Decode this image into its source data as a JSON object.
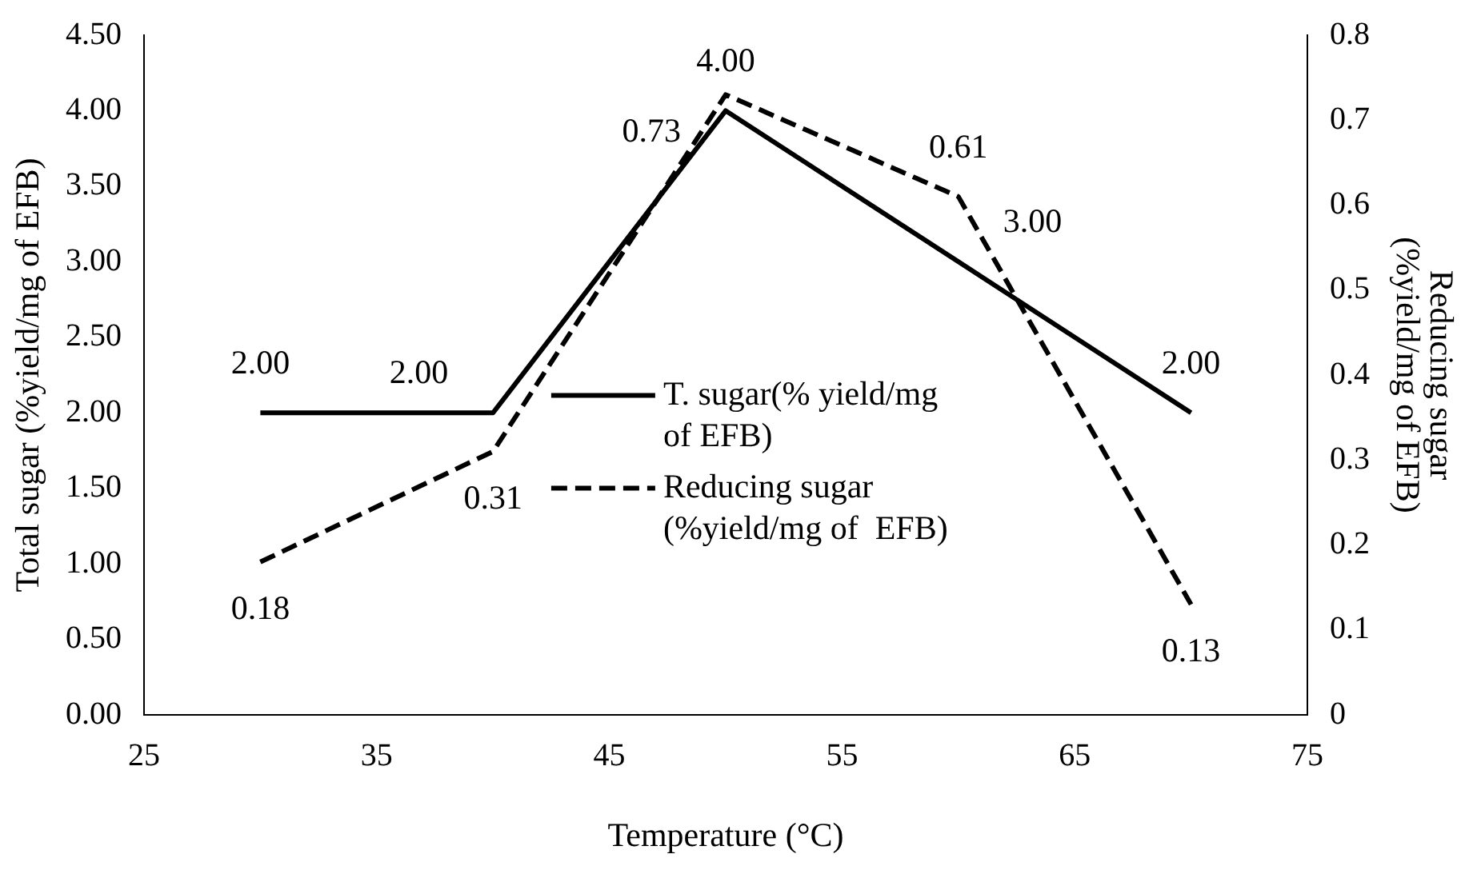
{
  "chart_data": {
    "type": "line",
    "xlabel": "Temperature (°C)",
    "ylabel": "Total sugar (%yield/mg of EFB)",
    "y2label": "Reducing sugar (%yield/mg of EFB)",
    "x": [
      30,
      40,
      50,
      60,
      70
    ],
    "series": [
      {
        "name": "T. sugar(% yield/mg of EFB)",
        "color": "#000000",
        "values": [
          2,
          2,
          4,
          3,
          2
        ],
        "value_labels": [
          "2.00",
          "2.00",
          "4.00",
          "3.00",
          "2.00"
        ],
        "line_style": "solid"
      },
      {
        "name": "Reducing sugar (%yield/mg of  EFB)",
        "color": "#000000",
        "values": [
          0.18,
          0.31,
          0.73,
          0.61,
          0.13
        ],
        "value_labels": [
          "0.18",
          "0.31",
          "0.73",
          "0.61",
          "0.13"
        ],
        "axis": "y2",
        "line_style": "dashed"
      }
    ],
    "xlim": [
      25,
      75
    ],
    "xticks": [
      25,
      35,
      45,
      55,
      65,
      75
    ],
    "ylim": [
      0,
      4.5
    ],
    "yticks": [
      {
        "value": 0,
        "label": "0.00"
      },
      {
        "value": 0.5,
        "label": "0.50"
      },
      {
        "value": 1,
        "label": "1.00"
      },
      {
        "value": 1.5,
        "label": "1.50"
      },
      {
        "value": 2,
        "label": "2.00"
      },
      {
        "value": 2.5,
        "label": "2.50"
      },
      {
        "value": 3,
        "label": "3.00"
      },
      {
        "value": 3.5,
        "label": "3.50"
      },
      {
        "value": 4,
        "label": "4.00"
      },
      {
        "value": 4.5,
        "label": "4.50"
      }
    ],
    "y2lim": [
      0,
      0.8
    ],
    "y2ticks": [
      0,
      0.1,
      0.2,
      0.3,
      0.4,
      0.5,
      0.6,
      0.7,
      0.8
    ],
    "legend": "bottom",
    "grid": false,
    "marker": "none"
  }
}
